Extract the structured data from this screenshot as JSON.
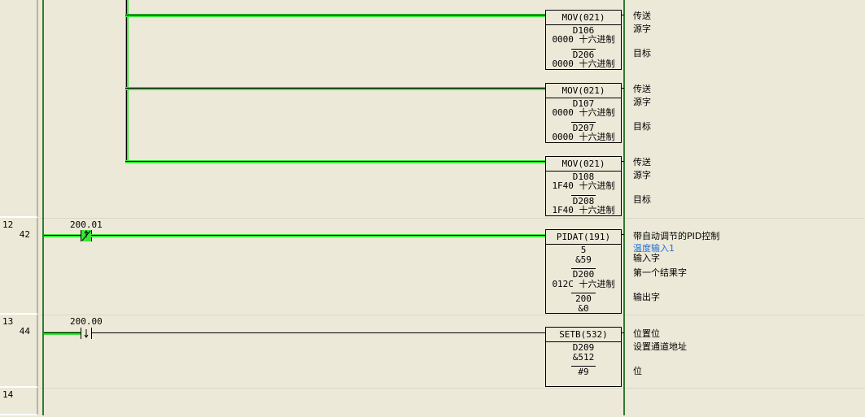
{
  "rungs": [
    {
      "rung": "",
      "step": ""
    },
    {
      "rung": "12",
      "step": "42",
      "contact": {
        "address": "200.01",
        "type": "differentiated-up-closed",
        "energized": true
      }
    },
    {
      "rung": "13",
      "step": "44",
      "contact": {
        "address": "200.00",
        "type": "differentiated-down-open",
        "energized": true
      }
    },
    {
      "rung": "14",
      "step": ""
    }
  ],
  "instructions": [
    {
      "name": "MOV(021)",
      "lines": [
        "D106",
        "0000 十六进制",
        "D206",
        "0000 十六进制"
      ],
      "comments": [
        "传送",
        "源字",
        "目标"
      ]
    },
    {
      "name": "MOV(021)",
      "lines": [
        "D107",
        "0000 十六进制",
        "D207",
        "0000 十六进制"
      ],
      "comments": [
        "传送",
        "源字",
        "目标"
      ]
    },
    {
      "name": "MOV(021)",
      "lines": [
        "D108",
        "1F40 十六进制",
        "D208",
        "1F40 十六进制"
      ],
      "comments": [
        "传送",
        "源字",
        "目标"
      ]
    },
    {
      "name": "PIDAT(191)",
      "lines": [
        "5",
        "&59",
        "D200",
        "012C 十六进制",
        "200",
        "&0"
      ],
      "comments": [
        "带自动调节的PID控制",
        "温度输入1",
        "输入字",
        "第一个结果字",
        "输出字"
      ]
    },
    {
      "name": "SETB(532)",
      "lines": [
        "D209",
        "&512",
        "#9"
      ],
      "comments": [
        "位置位",
        "设置通道地址",
        "位"
      ]
    }
  ],
  "colors": {
    "background": "#ECE9D8",
    "energized": "#39E639",
    "rail": "#2E7D32",
    "symbol_comment": "#1E6FD9"
  }
}
